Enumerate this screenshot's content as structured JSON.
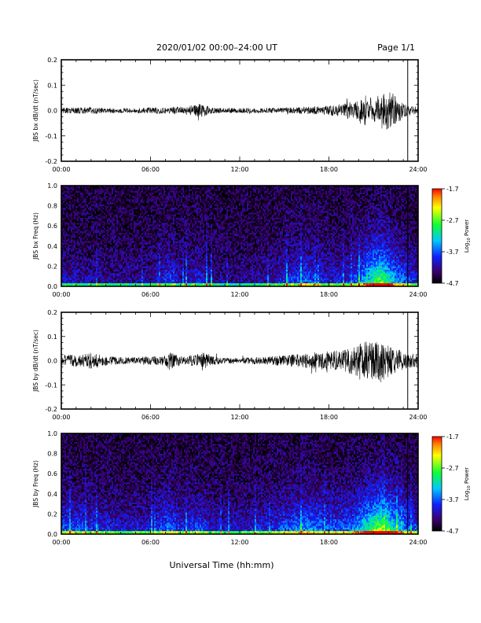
{
  "header": {
    "date_range": "2020/01/02  00:00–24:00 UT",
    "page": "Page 1/1"
  },
  "footer": {
    "xlabel": "Universal Time (hh:mm)"
  },
  "chart_data": [
    {
      "type": "line",
      "ylabel": "JBS bx dB/dt (nT/sec)",
      "xlim": [
        "00:00",
        "24:00"
      ],
      "ylim": [
        -0.2,
        0.2
      ],
      "x_ticks": [
        "00:00",
        "06:00",
        "12:00",
        "18:00",
        "24:00"
      ],
      "y_ticks": [
        "0.2",
        "0.1",
        "0.0",
        "-0.1",
        "-0.2"
      ],
      "envelope": {
        "x_hours": [
          0,
          1,
          2,
          3,
          4,
          5,
          6,
          7,
          8,
          9,
          9.5,
          10,
          11,
          12,
          13,
          14,
          15,
          16,
          17,
          18,
          19,
          20,
          20.5,
          21,
          21.5,
          22,
          22.5,
          23,
          23.5,
          24
        ],
        "amplitude": [
          0.012,
          0.012,
          0.014,
          0.01,
          0.01,
          0.01,
          0.012,
          0.013,
          0.016,
          0.022,
          0.03,
          0.012,
          0.01,
          0.01,
          0.01,
          0.01,
          0.012,
          0.014,
          0.015,
          0.02,
          0.028,
          0.05,
          0.06,
          0.045,
          0.07,
          0.085,
          0.055,
          0.03,
          0.02,
          0.015
        ]
      },
      "vertical_marker_hours": 23.3
    },
    {
      "type": "heatmap",
      "ylabel": "JBS bx Freq (Hz)",
      "xlim": [
        "00:00",
        "24:00"
      ],
      "ylim": [
        0.0,
        1.0
      ],
      "x_ticks": [
        "00:00",
        "06:00",
        "12:00",
        "18:00",
        "24:00"
      ],
      "y_ticks": [
        "1.0",
        "0.8",
        "0.6",
        "0.4",
        "0.2",
        "0.0"
      ],
      "colorbar": {
        "label": "Log₁₀ Power",
        "label_text": "Log",
        "label_sub": "10",
        "label_rest": " Power",
        "min": -4.7,
        "max": -1.7,
        "ticks": [
          "-1.7",
          "-2.7",
          "-3.7",
          "-4.7"
        ]
      },
      "activity": {
        "x_hours": [
          0,
          2,
          4,
          6,
          7.2,
          8,
          9.5,
          10,
          12,
          14,
          15.5,
          16.5,
          18,
          19.5,
          20.5,
          21.5,
          22.5,
          23.3,
          24
        ],
        "intensity": [
          0.18,
          0.16,
          0.12,
          0.14,
          0.3,
          0.16,
          0.24,
          0.12,
          0.12,
          0.16,
          0.28,
          0.34,
          0.22,
          0.26,
          0.5,
          0.78,
          0.45,
          0.3,
          0.22
        ]
      },
      "vertical_marker_hours": 23.3
    },
    {
      "type": "line",
      "ylabel": "JBS by dB/dt (nT/sec)",
      "xlim": [
        "00:00",
        "24:00"
      ],
      "ylim": [
        -0.2,
        0.2
      ],
      "x_ticks": [
        "00:00",
        "06:00",
        "12:00",
        "18:00",
        "24:00"
      ],
      "y_ticks": [
        "0.2",
        "0.1",
        "0.0",
        "-0.1",
        "-0.2"
      ],
      "envelope": {
        "x_hours": [
          0,
          1,
          2,
          2.5,
          3,
          4,
          5,
          6,
          7,
          7.3,
          8,
          9,
          9.5,
          10,
          11,
          12,
          13,
          14,
          15,
          16,
          17,
          18,
          19,
          20,
          20.5,
          21,
          21.5,
          22,
          22.5,
          23,
          23.5,
          24
        ],
        "amplitude": [
          0.025,
          0.025,
          0.035,
          0.03,
          0.02,
          0.015,
          0.015,
          0.018,
          0.02,
          0.04,
          0.02,
          0.025,
          0.04,
          0.02,
          0.012,
          0.012,
          0.015,
          0.018,
          0.022,
          0.028,
          0.035,
          0.04,
          0.045,
          0.07,
          0.085,
          0.075,
          0.09,
          0.07,
          0.05,
          0.04,
          0.03,
          0.025
        ]
      },
      "vertical_marker_hours": 23.3
    },
    {
      "type": "heatmap",
      "ylabel": "JBS by Freq (Hz)",
      "xlim": [
        "00:00",
        "24:00"
      ],
      "ylim": [
        0.0,
        1.0
      ],
      "x_ticks": [
        "00:00",
        "06:00",
        "12:00",
        "18:00",
        "24:00"
      ],
      "y_ticks": [
        "1.0",
        "0.8",
        "0.6",
        "0.4",
        "0.2",
        "0.0"
      ],
      "colorbar": {
        "label": "Log₁₀ Power",
        "label_text": "Log",
        "label_sub": "10",
        "label_rest": " Power",
        "min": -4.7,
        "max": -1.7,
        "ticks": [
          "-1.7",
          "-2.7",
          "-3.7",
          "-4.7"
        ]
      },
      "activity": {
        "x_hours": [
          0,
          1,
          2,
          3,
          4,
          6,
          7.2,
          8,
          9.5,
          10,
          12,
          14,
          15.5,
          16.5,
          18,
          19.5,
          20.5,
          21.5,
          22.5,
          23.3,
          24
        ],
        "intensity": [
          0.34,
          0.3,
          0.28,
          0.24,
          0.2,
          0.22,
          0.38,
          0.24,
          0.3,
          0.2,
          0.2,
          0.24,
          0.36,
          0.42,
          0.34,
          0.36,
          0.6,
          0.85,
          0.55,
          0.36,
          0.3
        ]
      },
      "vertical_marker_hours": 23.3
    }
  ]
}
